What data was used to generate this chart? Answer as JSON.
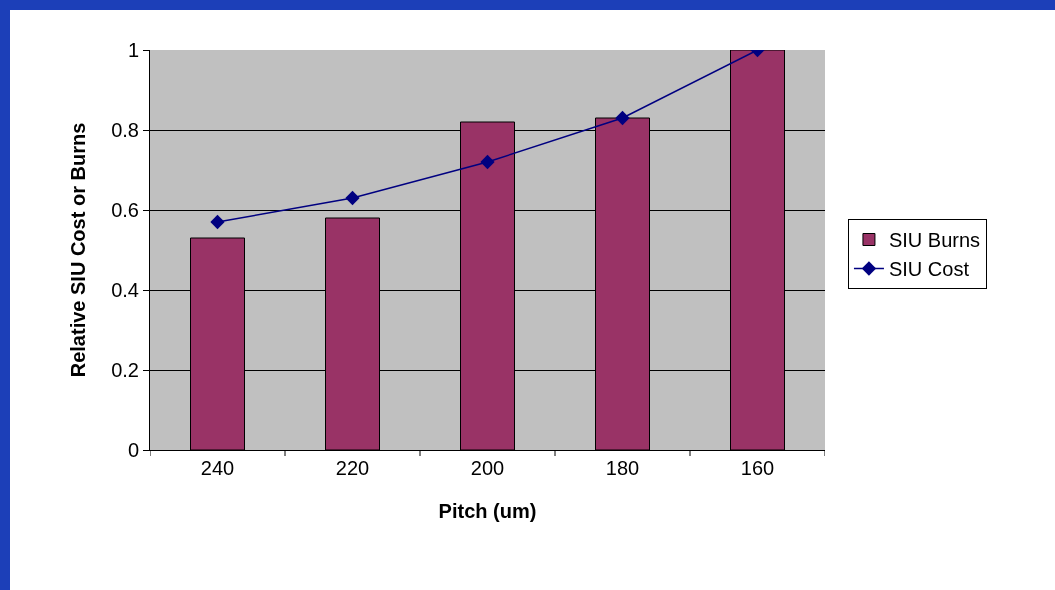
{
  "chart_data": {
    "type": "bar",
    "xlabel": "Pitch (um)",
    "ylabel": "Relative SIU Cost or Burns",
    "categories": [
      "240",
      "220",
      "200",
      "180",
      "160"
    ],
    "series": [
      {
        "name": "SIU Burns",
        "color": "#993366",
        "values": [
          0.53,
          0.58,
          0.82,
          0.83,
          1.0
        ]
      },
      {
        "name": "SIU Cost",
        "type": "line",
        "color": "#000080",
        "values": [
          0.57,
          0.63,
          0.72,
          0.83,
          1.0
        ]
      }
    ],
    "ylim": [
      0,
      1
    ],
    "yticks": [
      0,
      0.2,
      0.4,
      0.6,
      0.8,
      1
    ],
    "grid": "y",
    "legend": "right",
    "marker": "diamond",
    "line_style": "solid"
  }
}
